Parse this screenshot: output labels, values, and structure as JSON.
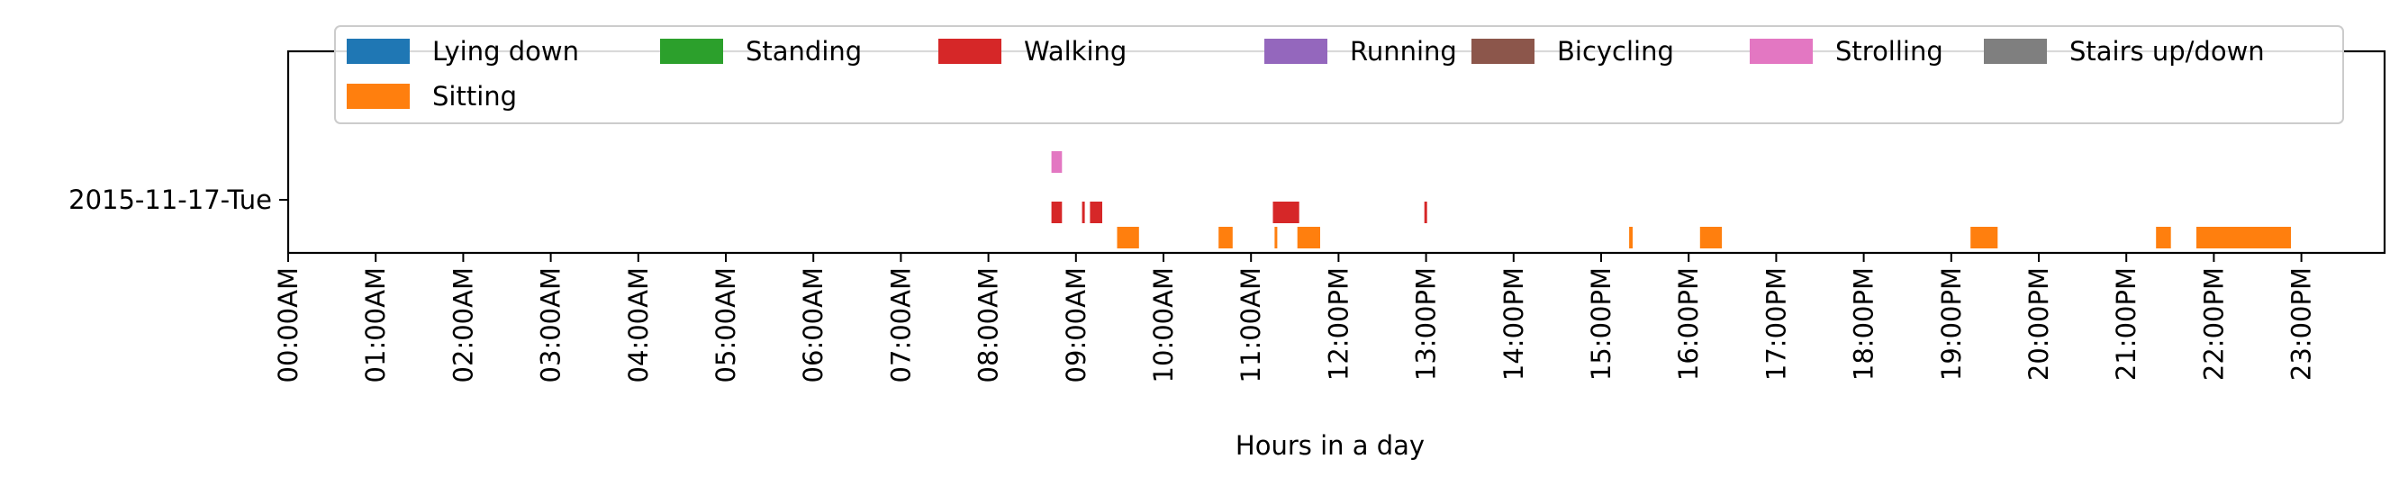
{
  "chart_data": {
    "type": "timeline",
    "title": "",
    "xlabel": "Hours in a day",
    "ylabel": "",
    "xlim_hours": [
      0,
      24
    ],
    "grid": false,
    "legend_placement": "top-center",
    "row_label": "2015-11-17-Tue",
    "x_tick_labels": [
      "00:00AM",
      "01:00AM",
      "02:00AM",
      "03:00AM",
      "04:00AM",
      "05:00AM",
      "06:00AM",
      "07:00AM",
      "08:00AM",
      "09:00AM",
      "10:00AM",
      "11:00AM",
      "12:00PM",
      "13:00PM",
      "14:00PM",
      "15:00PM",
      "16:00PM",
      "17:00PM",
      "18:00PM",
      "19:00PM",
      "20:00PM",
      "21:00PM",
      "22:00PM",
      "23:00PM"
    ],
    "legend": [
      {
        "label": "Lying down",
        "color": "#1f77b4"
      },
      {
        "label": "Standing",
        "color": "#2ca02c"
      },
      {
        "label": "Walking",
        "color": "#d62728"
      },
      {
        "label": "Running",
        "color": "#9467bd"
      },
      {
        "label": "Bicycling",
        "color": "#8c564b"
      },
      {
        "label": "Strolling",
        "color": "#e377c2"
      },
      {
        "label": "Stairs up/down",
        "color": "#7f7f7f"
      },
      {
        "label": "Sitting",
        "color": "#ff7f0e"
      }
    ],
    "series": [
      {
        "name": "Strolling",
        "lane": 2,
        "intervals": [
          [
            8.72,
            8.84
          ]
        ]
      },
      {
        "name": "Walking",
        "lane": 1,
        "intervals": [
          [
            8.72,
            8.84
          ],
          [
            9.07,
            9.1
          ],
          [
            9.16,
            9.3
          ],
          [
            11.25,
            11.55
          ],
          [
            12.98,
            13.01
          ]
        ]
      },
      {
        "name": "Sitting",
        "lane": 0,
        "intervals": [
          [
            9.47,
            9.72
          ],
          [
            10.63,
            10.79
          ],
          [
            11.27,
            11.3
          ],
          [
            11.53,
            11.79
          ],
          [
            15.32,
            15.36
          ],
          [
            16.13,
            16.38
          ],
          [
            19.22,
            19.53
          ],
          [
            21.34,
            21.51
          ],
          [
            21.8,
            22.88
          ]
        ]
      }
    ]
  }
}
